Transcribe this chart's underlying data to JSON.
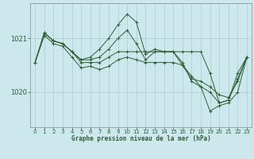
{
  "title": "Graphe pression niveau de la mer (hPa)",
  "bg_color": "#cce8ec",
  "grid_color": "#aacccc",
  "line_color": "#2d6030",
  "spine_color": "#888888",
  "xlim": [
    -0.5,
    23.5
  ],
  "ylim": [
    1019.35,
    1021.65
  ],
  "yticks": [
    1020,
    1021
  ],
  "xticks": [
    0,
    1,
    2,
    3,
    4,
    5,
    6,
    7,
    8,
    9,
    10,
    11,
    12,
    13,
    14,
    15,
    16,
    17,
    18,
    19,
    20,
    21,
    22,
    23
  ],
  "series": [
    [
      1020.55,
      1021.1,
      1020.95,
      1020.9,
      1020.75,
      1020.6,
      1020.65,
      1020.8,
      1021.0,
      1021.25,
      1021.45,
      1021.3,
      1020.7,
      1020.8,
      1020.75,
      1020.75,
      1020.5,
      1020.25,
      1020.2,
      1020.1,
      1019.95,
      1019.9,
      1020.2,
      1020.65
    ],
    [
      1020.55,
      1021.1,
      1020.95,
      1020.9,
      1020.75,
      1020.6,
      1020.6,
      1020.65,
      1020.8,
      1021.0,
      1021.15,
      1020.9,
      1020.6,
      1020.75,
      1020.75,
      1020.75,
      1020.55,
      1020.2,
      1020.1,
      1020.0,
      1019.8,
      1019.85,
      1020.35,
      1020.65
    ],
    [
      1020.55,
      1021.1,
      1020.95,
      1020.9,
      1020.75,
      1020.55,
      1020.55,
      1020.55,
      1020.65,
      1020.75,
      1020.75,
      1020.75,
      1020.75,
      1020.75,
      1020.75,
      1020.75,
      1020.75,
      1020.75,
      1020.75,
      1020.35,
      1019.8,
      1019.85,
      1020.25,
      1020.65
    ],
    [
      1020.55,
      1021.05,
      1020.9,
      1020.85,
      1020.65,
      1020.45,
      1020.48,
      1020.42,
      1020.48,
      1020.6,
      1020.65,
      1020.6,
      1020.55,
      1020.55,
      1020.55,
      1020.55,
      1020.5,
      1020.3,
      1020.1,
      1019.65,
      1019.75,
      1019.8,
      1020.0,
      1020.65
    ]
  ]
}
